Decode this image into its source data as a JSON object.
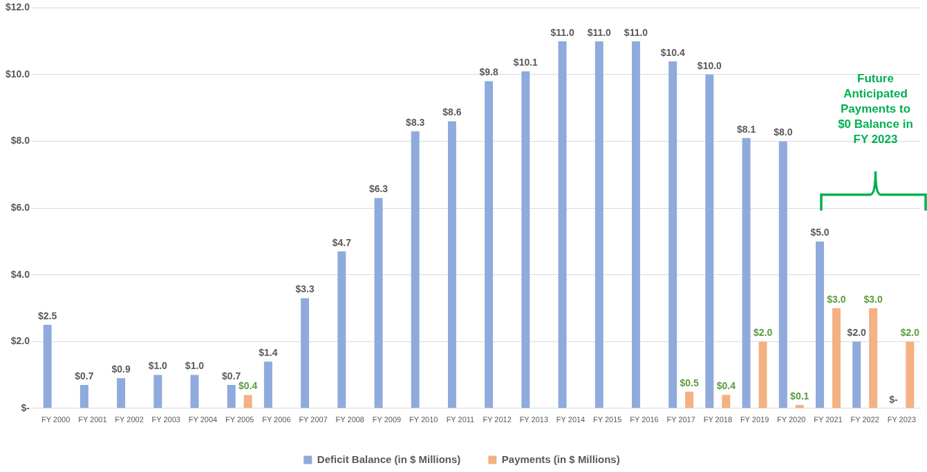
{
  "chart_data": {
    "type": "bar",
    "categories": [
      "FY 2000",
      "FY 2001",
      "FY 2002",
      "FY 2003",
      "FY 2004",
      "FY 2005",
      "FY 2006",
      "FY 2007",
      "FY 2008",
      "FY 2009",
      "FY 2010",
      "FY 2011",
      "FY 2012",
      "FY 2013",
      "FY 2014",
      "FY 2015",
      "FY 2016",
      "FY 2017",
      "FY 2018",
      "FY 2019",
      "FY 2020",
      "FY 2021",
      "FY 2022",
      "FY 2023"
    ],
    "series": [
      {
        "name": "Deficit Balance (in $ Millions)",
        "color": "#8faadc",
        "values": [
          2.5,
          0.7,
          0.9,
          1.0,
          1.0,
          0.7,
          1.4,
          3.3,
          4.7,
          6.3,
          8.3,
          8.6,
          9.8,
          10.1,
          11.0,
          11.0,
          11.0,
          10.4,
          10.0,
          8.1,
          8.0,
          5.0,
          2.0,
          0
        ],
        "value_labels": [
          "$2.5",
          "$0.7",
          "$0.9",
          "$1.0",
          "$1.0",
          "$0.7",
          "$1.4",
          "$3.3",
          "$4.7",
          "$6.3",
          "$8.3",
          "$8.6",
          "$9.8",
          "$10.1",
          "$11.0",
          "$11.0",
          "$11.0",
          "$10.4",
          "$10.0",
          "$8.1",
          "$8.0",
          "$5.0",
          "$2.0",
          "$-"
        ]
      },
      {
        "name": "Payments (in $ Millions)",
        "color": "#f4b183",
        "values": [
          null,
          null,
          null,
          null,
          null,
          0.4,
          null,
          null,
          null,
          null,
          null,
          null,
          null,
          null,
          null,
          null,
          null,
          0.5,
          0.4,
          2.0,
          0.1,
          3.0,
          3.0,
          2.0
        ],
        "value_labels": [
          null,
          null,
          null,
          null,
          null,
          "$0.4",
          null,
          null,
          null,
          null,
          null,
          null,
          null,
          null,
          null,
          null,
          null,
          "$0.5",
          "$0.4",
          "$2.0",
          "$0.1",
          "$3.0",
          "$3.0",
          "$2.0"
        ]
      }
    ],
    "ylim": [
      0,
      12
    ],
    "yticks": [
      {
        "value": 0,
        "label": "$-"
      },
      {
        "value": 2,
        "label": "$2.0"
      },
      {
        "value": 4,
        "label": "$4.0"
      },
      {
        "value": 6,
        "label": "$6.0"
      },
      {
        "value": 8,
        "label": "$8.0"
      },
      {
        "value": 10,
        "label": "$10.0"
      },
      {
        "value": 12,
        "label": "$12.0"
      }
    ],
    "grid": "y",
    "legend": "bottom",
    "annotations": [
      "Future Anticipated Payments to $0 Balance in FY 2023"
    ]
  }
}
